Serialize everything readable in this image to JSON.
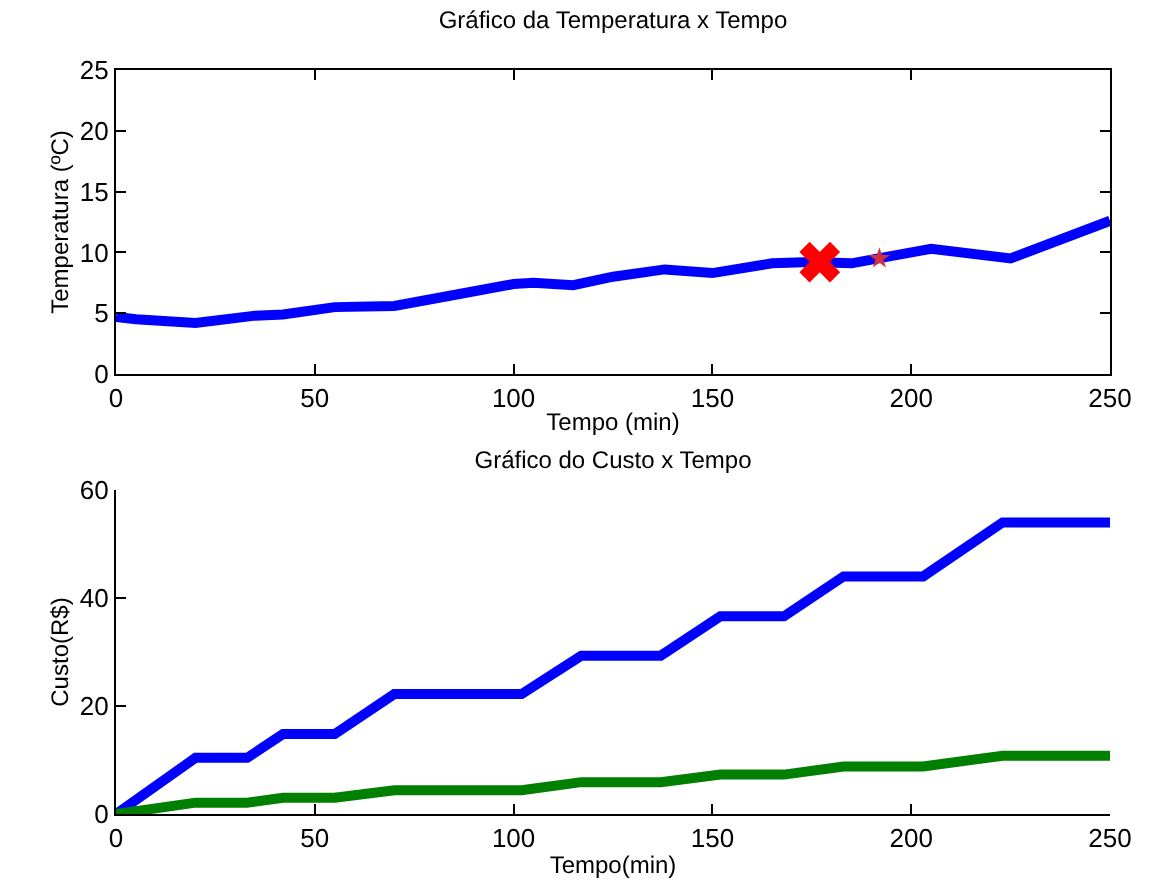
{
  "chart_data": [
    {
      "type": "line",
      "title": "Gráfico da Temperatura x Tempo",
      "xlabel": "Tempo (min)",
      "ylabel": "Temperatura (ºC)",
      "xlim": [
        0,
        250
      ],
      "xticks": [
        0,
        50,
        100,
        150,
        200,
        250
      ],
      "ylim": [
        0,
        25
      ],
      "yticks": [
        0,
        5,
        10,
        15,
        20,
        25
      ],
      "grid": false,
      "marker": "none",
      "line_style": "solid",
      "series": [
        {
          "color": "#0000ff",
          "x": [
            0,
            5,
            20,
            35,
            42,
            55,
            70,
            85,
            100,
            105,
            115,
            125,
            138,
            150,
            165,
            175,
            185,
            205,
            225,
            250
          ],
          "values": [
            4.7,
            4.5,
            4.2,
            4.8,
            4.9,
            5.5,
            5.6,
            6.5,
            7.4,
            7.5,
            7.3,
            8,
            8.6,
            8.3,
            9.1,
            9.2,
            9.1,
            10.3,
            9.5,
            12.6
          ]
        },
        {
          "type": "scatter",
          "marker": "cross",
          "color": "#ff0000",
          "x": [
            177
          ],
          "values": [
            9.2
          ]
        },
        {
          "type": "scatter",
          "marker": "star",
          "color": "#d03040",
          "x": [
            192
          ],
          "values": [
            9.5
          ]
        }
      ]
    },
    {
      "type": "line",
      "title": "Gráfico do Custo x Tempo",
      "xlabel": "Tempo(min)",
      "ylabel": "Custo(R$)",
      "xlim": [
        0,
        250
      ],
      "xticks": [
        0,
        50,
        100,
        150,
        200,
        250
      ],
      "ylim": [
        0,
        60
      ],
      "yticks": [
        0,
        20,
        40,
        60
      ],
      "grid": false,
      "marker": "none",
      "line_style": "solid",
      "series": [
        {
          "color": "#0000ff",
          "x": [
            0,
            20,
            33,
            42,
            55,
            70,
            102,
            117,
            137,
            152,
            168,
            183,
            203,
            223,
            250
          ],
          "values": [
            0,
            10.4,
            10.4,
            14.8,
            14.8,
            22.2,
            22.2,
            29.3,
            29.3,
            36.6,
            36.6,
            44,
            44,
            54,
            54
          ]
        },
        {
          "color": "#007f00",
          "x": [
            0,
            20,
            33,
            42,
            55,
            70,
            102,
            117,
            137,
            152,
            168,
            183,
            203,
            223,
            250
          ],
          "values": [
            0,
            2.1,
            2.1,
            3,
            3,
            4.4,
            4.4,
            5.9,
            5.9,
            7.3,
            7.3,
            8.8,
            8.8,
            10.8,
            10.8
          ]
        }
      ]
    }
  ]
}
